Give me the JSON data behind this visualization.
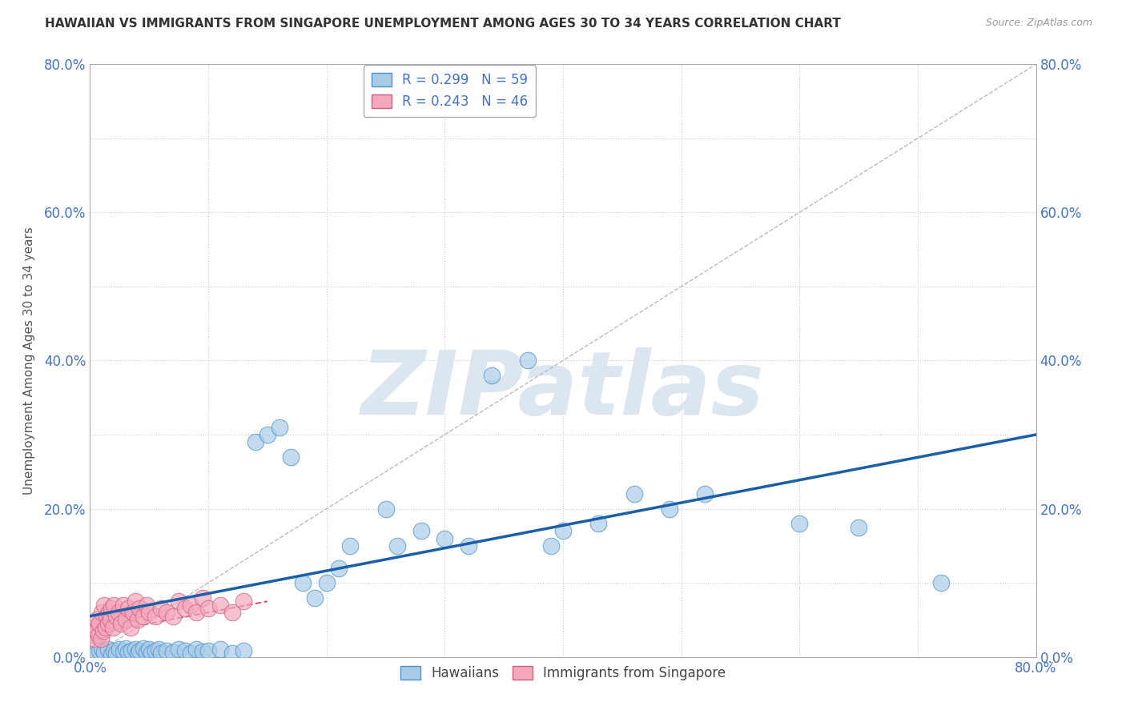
{
  "title": "HAWAIIAN VS IMMIGRANTS FROM SINGAPORE UNEMPLOYMENT AMONG AGES 30 TO 34 YEARS CORRELATION CHART",
  "source": "Source: ZipAtlas.com",
  "ylabel": "Unemployment Among Ages 30 to 34 years",
  "xlim": [
    0,
    0.8
  ],
  "ylim": [
    0,
    0.8
  ],
  "ytick_positions": [
    0.0,
    0.2,
    0.4,
    0.6,
    0.8
  ],
  "ytick_labels": [
    "0.0%",
    "20.0%",
    "40.0%",
    "60.0%",
    "80.0%"
  ],
  "xtick_positions": [
    0.0,
    0.8
  ],
  "xtick_labels": [
    "0.0%",
    "80.0%"
  ],
  "legend_r1": "R = 0.299",
  "legend_n1": "N = 59",
  "legend_r2": "R = 0.243",
  "legend_n2": "N = 46",
  "color_hawaiian": "#a8cce8",
  "color_singapore": "#f4a8bc",
  "color_trend_hawaiian": "#1a5fa8",
  "color_trend_singapore": "#e05070",
  "watermark": "ZIPatlas",
  "watermark_color": "#dce6f0",
  "background_color": "#ffffff",
  "hawaiian_x": [
    0.005,
    0.008,
    0.01,
    0.012,
    0.015,
    0.018,
    0.02,
    0.022,
    0.025,
    0.028,
    0.03,
    0.032,
    0.035,
    0.038,
    0.04,
    0.042,
    0.045,
    0.048,
    0.05,
    0.052,
    0.055,
    0.058,
    0.06,
    0.065,
    0.07,
    0.075,
    0.08,
    0.085,
    0.09,
    0.095,
    0.1,
    0.11,
    0.12,
    0.13,
    0.14,
    0.15,
    0.16,
    0.17,
    0.18,
    0.19,
    0.2,
    0.21,
    0.22,
    0.25,
    0.26,
    0.28,
    0.3,
    0.32,
    0.34,
    0.37,
    0.39,
    0.4,
    0.43,
    0.46,
    0.49,
    0.52,
    0.6,
    0.65,
    0.72
  ],
  "hawaiian_y": [
    0.005,
    0.008,
    0.012,
    0.006,
    0.01,
    0.003,
    0.008,
    0.005,
    0.01,
    0.007,
    0.012,
    0.006,
    0.008,
    0.01,
    0.005,
    0.008,
    0.012,
    0.006,
    0.01,
    0.005,
    0.008,
    0.01,
    0.005,
    0.008,
    0.006,
    0.01,
    0.008,
    0.005,
    0.01,
    0.007,
    0.008,
    0.01,
    0.005,
    0.008,
    0.29,
    0.3,
    0.31,
    0.27,
    0.1,
    0.08,
    0.1,
    0.12,
    0.15,
    0.2,
    0.15,
    0.17,
    0.16,
    0.15,
    0.38,
    0.4,
    0.15,
    0.17,
    0.18,
    0.22,
    0.2,
    0.22,
    0.18,
    0.175,
    0.1
  ],
  "singaporean_x": [
    0.002,
    0.003,
    0.004,
    0.005,
    0.006,
    0.007,
    0.008,
    0.009,
    0.01,
    0.011,
    0.012,
    0.013,
    0.014,
    0.015,
    0.016,
    0.017,
    0.018,
    0.019,
    0.02,
    0.022,
    0.024,
    0.026,
    0.028,
    0.03,
    0.032,
    0.034,
    0.036,
    0.038,
    0.04,
    0.042,
    0.045,
    0.048,
    0.05,
    0.055,
    0.06,
    0.065,
    0.07,
    0.075,
    0.08,
    0.085,
    0.09,
    0.095,
    0.1,
    0.11,
    0.12,
    0.13
  ],
  "singaporean_y": [
    0.03,
    0.04,
    0.025,
    0.035,
    0.05,
    0.03,
    0.045,
    0.025,
    0.06,
    0.035,
    0.07,
    0.04,
    0.055,
    0.045,
    0.06,
    0.05,
    0.065,
    0.04,
    0.07,
    0.055,
    0.06,
    0.045,
    0.07,
    0.05,
    0.065,
    0.04,
    0.06,
    0.075,
    0.05,
    0.065,
    0.055,
    0.07,
    0.06,
    0.055,
    0.065,
    0.06,
    0.055,
    0.075,
    0.065,
    0.07,
    0.06,
    0.08,
    0.065,
    0.07,
    0.06,
    0.075
  ],
  "trend_h_x0": 0.0,
  "trend_h_y0": 0.055,
  "trend_h_x1": 0.8,
  "trend_h_y1": 0.3,
  "trend_s_x0": 0.0,
  "trend_s_y0": 0.03,
  "trend_s_x1": 0.15,
  "trend_s_y1": 0.075
}
